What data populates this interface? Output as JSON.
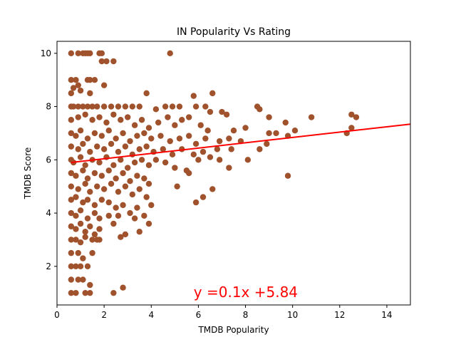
{
  "chart_data": {
    "type": "scatter",
    "title": "IN Popularity Vs Rating",
    "xlabel": "TMDB Popularity",
    "ylabel": "TMDB Score",
    "xlim": [
      0,
      15
    ],
    "ylim": [
      0.55,
      10.45
    ],
    "xticks": [
      "0",
      "2",
      "4",
      "6",
      "8",
      "10",
      "12",
      "14"
    ],
    "yticks": [
      "2",
      "4",
      "6",
      "8",
      "10"
    ],
    "grid": false,
    "point_color": "#a0522d",
    "line_color": "#ff0000",
    "regression": {
      "slope": 0.1,
      "intercept": 5.84,
      "x": [
        0.6,
        15.0
      ]
    },
    "annotation": {
      "text": "y =0.1x +5.84",
      "x": 5.8,
      "y": 0.85,
      "color": "#ff0000"
    },
    "points": [
      [
        0.6,
        10
      ],
      [
        0.9,
        10
      ],
      [
        1.1,
        10
      ],
      [
        1.2,
        10
      ],
      [
        1.3,
        10
      ],
      [
        1.4,
        10
      ],
      [
        1.8,
        10
      ],
      [
        1.9,
        10
      ],
      [
        4.8,
        10
      ],
      [
        1.9,
        9.7
      ],
      [
        2.1,
        9.7
      ],
      [
        2.4,
        9.7
      ],
      [
        0.6,
        9
      ],
      [
        0.8,
        9
      ],
      [
        1.3,
        9
      ],
      [
        1.4,
        9
      ],
      [
        1.6,
        9
      ],
      [
        0.7,
        8.7
      ],
      [
        0.9,
        8.8
      ],
      [
        0.6,
        8.5
      ],
      [
        1.0,
        8.6
      ],
      [
        1.4,
        8.5
      ],
      [
        2.0,
        8.8
      ],
      [
        3.8,
        8.5
      ],
      [
        5.8,
        8.4
      ],
      [
        6.6,
        8.5
      ],
      [
        0.6,
        8
      ],
      [
        0.7,
        8
      ],
      [
        0.9,
        8
      ],
      [
        1.1,
        8
      ],
      [
        1.3,
        8
      ],
      [
        1.5,
        8
      ],
      [
        1.7,
        8
      ],
      [
        2.0,
        8
      ],
      [
        2.3,
        8
      ],
      [
        2.6,
        8
      ],
      [
        2.9,
        8
      ],
      [
        3.2,
        8
      ],
      [
        3.5,
        8
      ],
      [
        4.2,
        7.9
      ],
      [
        4.6,
        8
      ],
      [
        4.9,
        8
      ],
      [
        5.2,
        8
      ],
      [
        5.9,
        8
      ],
      [
        6.3,
        8
      ],
      [
        6.5,
        7.8
      ],
      [
        7.0,
        7.8
      ],
      [
        8.5,
        8
      ],
      [
        8.6,
        7.9
      ],
      [
        0.6,
        7.5
      ],
      [
        0.9,
        7.6
      ],
      [
        1.2,
        7.7
      ],
      [
        1.5,
        7.5
      ],
      [
        1.8,
        7.6
      ],
      [
        2.1,
        7.4
      ],
      [
        2.4,
        7.7
      ],
      [
        2.7,
        7.5
      ],
      [
        3.0,
        7.6
      ],
      [
        3.3,
        7.3
      ],
      [
        3.6,
        7.5
      ],
      [
        3.9,
        7.2
      ],
      [
        4.3,
        7.4
      ],
      [
        4.7,
        7.6
      ],
      [
        5.0,
        7.3
      ],
      [
        5.3,
        7.5
      ],
      [
        5.6,
        7.6
      ],
      [
        6.1,
        7.3
      ],
      [
        6.4,
        7.1
      ],
      [
        7.2,
        7.7
      ],
      [
        7.5,
        7.1
      ],
      [
        8.0,
        7.2
      ],
      [
        9.0,
        7.6
      ],
      [
        9.7,
        7.4
      ],
      [
        10.8,
        7.6
      ],
      [
        12.5,
        7.7
      ],
      [
        12.7,
        7.6
      ],
      [
        0.6,
        7
      ],
      [
        0.8,
        6.9
      ],
      [
        1.0,
        7.1
      ],
      [
        1.3,
        6.8
      ],
      [
        1.6,
        7
      ],
      [
        1.9,
        6.9
      ],
      [
        2.2,
        7.1
      ],
      [
        2.5,
        6.8
      ],
      [
        2.8,
        7
      ],
      [
        3.1,
        6.7
      ],
      [
        3.4,
        6.9
      ],
      [
        3.7,
        7
      ],
      [
        4.0,
        6.8
      ],
      [
        4.4,
        6.9
      ],
      [
        4.8,
        6.7
      ],
      [
        5.2,
        6.8
      ],
      [
        5.6,
        6.9
      ],
      [
        5.9,
        6.6
      ],
      [
        6.3,
        6.8
      ],
      [
        6.9,
        6.7
      ],
      [
        7.3,
        6.8
      ],
      [
        7.8,
        6.7
      ],
      [
        9.0,
        7
      ],
      [
        9.3,
        7
      ],
      [
        9.8,
        6.9
      ],
      [
        10.1,
        7.1
      ],
      [
        12.3,
        7
      ],
      [
        12.5,
        7.2
      ],
      [
        0.6,
        6.5
      ],
      [
        0.9,
        6.4
      ],
      [
        1.1,
        6.6
      ],
      [
        1.4,
        6.3
      ],
      [
        1.7,
        6.5
      ],
      [
        2.0,
        6.4
      ],
      [
        2.3,
        6.6
      ],
      [
        2.6,
        6.3
      ],
      [
        2.9,
        6.5
      ],
      [
        3.2,
        6.2
      ],
      [
        3.5,
        6.4
      ],
      [
        3.8,
        6.5
      ],
      [
        4.1,
        6.3
      ],
      [
        4.5,
        6.4
      ],
      [
        4.9,
        6.2
      ],
      [
        5.3,
        6.4
      ],
      [
        5.8,
        6.2
      ],
      [
        6.2,
        6.3
      ],
      [
        6.5,
        6.1
      ],
      [
        6.8,
        6.4
      ],
      [
        7.4,
        6.4
      ],
      [
        8.1,
        6.0
      ],
      [
        8.6,
        6.4
      ],
      [
        8.9,
        6.6
      ],
      [
        0.6,
        6
      ],
      [
        0.7,
        5.9
      ],
      [
        1.0,
        6.1
      ],
      [
        1.2,
        5.8
      ],
      [
        1.5,
        6
      ],
      [
        1.8,
        5.9
      ],
      [
        2.1,
        6.1
      ],
      [
        2.4,
        5.8
      ],
      [
        2.7,
        6
      ],
      [
        3.0,
        5.7
      ],
      [
        3.3,
        5.9
      ],
      [
        3.6,
        6
      ],
      [
        3.9,
        5.8
      ],
      [
        4.2,
        6.0
      ],
      [
        4.6,
        5.9
      ],
      [
        5.0,
        5.7
      ],
      [
        5.5,
        5.6
      ],
      [
        6.0,
        6.0
      ],
      [
        6.9,
        6.0
      ],
      [
        7.3,
        5.7
      ],
      [
        0.6,
        5.5
      ],
      [
        0.8,
        5.4
      ],
      [
        1.1,
        5.6
      ],
      [
        1.3,
        5.3
      ],
      [
        1.6,
        5.5
      ],
      [
        1.9,
        5.4
      ],
      [
        2.2,
        5.6
      ],
      [
        2.5,
        5.3
      ],
      [
        2.8,
        5.5
      ],
      [
        3.1,
        5.2
      ],
      [
        3.4,
        5.4
      ],
      [
        3.7,
        5.3
      ],
      [
        5.6,
        5.5
      ],
      [
        9.8,
        5.4
      ],
      [
        0.6,
        5
      ],
      [
        0.9,
        4.9
      ],
      [
        1.2,
        5.1
      ],
      [
        1.4,
        4.8
      ],
      [
        1.7,
        5
      ],
      [
        2.0,
        4.9
      ],
      [
        2.3,
        5.1
      ],
      [
        2.6,
        4.8
      ],
      [
        2.9,
        5
      ],
      [
        3.2,
        4.7
      ],
      [
        3.5,
        4.9
      ],
      [
        3.9,
        5.1
      ],
      [
        5.1,
        5.0
      ],
      [
        6.6,
        4.9
      ],
      [
        0.6,
        4.5
      ],
      [
        0.8,
        4.6
      ],
      [
        1.1,
        4.4
      ],
      [
        1.3,
        4.5
      ],
      [
        1.6,
        4.3
      ],
      [
        1.9,
        4.5
      ],
      [
        2.2,
        4.4
      ],
      [
        2.5,
        4.2
      ],
      [
        2.8,
        4.3
      ],
      [
        3.1,
        4.0
      ],
      [
        3.4,
        4.2
      ],
      [
        3.8,
        4.6
      ],
      [
        4.0,
        4.3
      ],
      [
        5.9,
        4.4
      ],
      [
        6.2,
        4.6
      ],
      [
        0.6,
        4
      ],
      [
        0.8,
        3.9
      ],
      [
        1.0,
        4.1
      ],
      [
        1.3,
        3.8
      ],
      [
        1.6,
        4
      ],
      [
        1.8,
        3.8
      ],
      [
        2.2,
        3.9
      ],
      [
        2.6,
        3.9
      ],
      [
        3.3,
        3.8
      ],
      [
        3.7,
        3.9
      ],
      [
        0.6,
        3.5
      ],
      [
        0.8,
        3.4
      ],
      [
        1.0,
        3.6
      ],
      [
        1.2,
        3.3
      ],
      [
        1.4,
        3.5
      ],
      [
        1.6,
        3.2
      ],
      [
        1.8,
        3.4
      ],
      [
        2.4,
        3.6
      ],
      [
        2.7,
        3.1
      ],
      [
        2.9,
        3.2
      ],
      [
        3.5,
        3.3
      ],
      [
        3.9,
        3.6
      ],
      [
        0.6,
        3
      ],
      [
        0.8,
        3.0
      ],
      [
        1.0,
        2.9
      ],
      [
        1.2,
        3.1
      ],
      [
        1.5,
        3.0
      ],
      [
        1.7,
        3.0
      ],
      [
        1.8,
        3.0
      ],
      [
        0.6,
        2.5
      ],
      [
        0.9,
        2.5
      ],
      [
        1.1,
        2.3
      ],
      [
        1.5,
        2.5
      ],
      [
        0.6,
        2
      ],
      [
        0.8,
        2
      ],
      [
        1.0,
        2.0
      ],
      [
        1.3,
        2.0
      ],
      [
        0.6,
        1.5
      ],
      [
        0.9,
        1.5
      ],
      [
        1.1,
        1.5
      ],
      [
        1.4,
        1.3
      ],
      [
        0.6,
        1
      ],
      [
        0.8,
        1
      ],
      [
        1.2,
        1
      ],
      [
        1.4,
        1
      ],
      [
        2.4,
        1
      ],
      [
        2.8,
        1.2
      ]
    ]
  }
}
